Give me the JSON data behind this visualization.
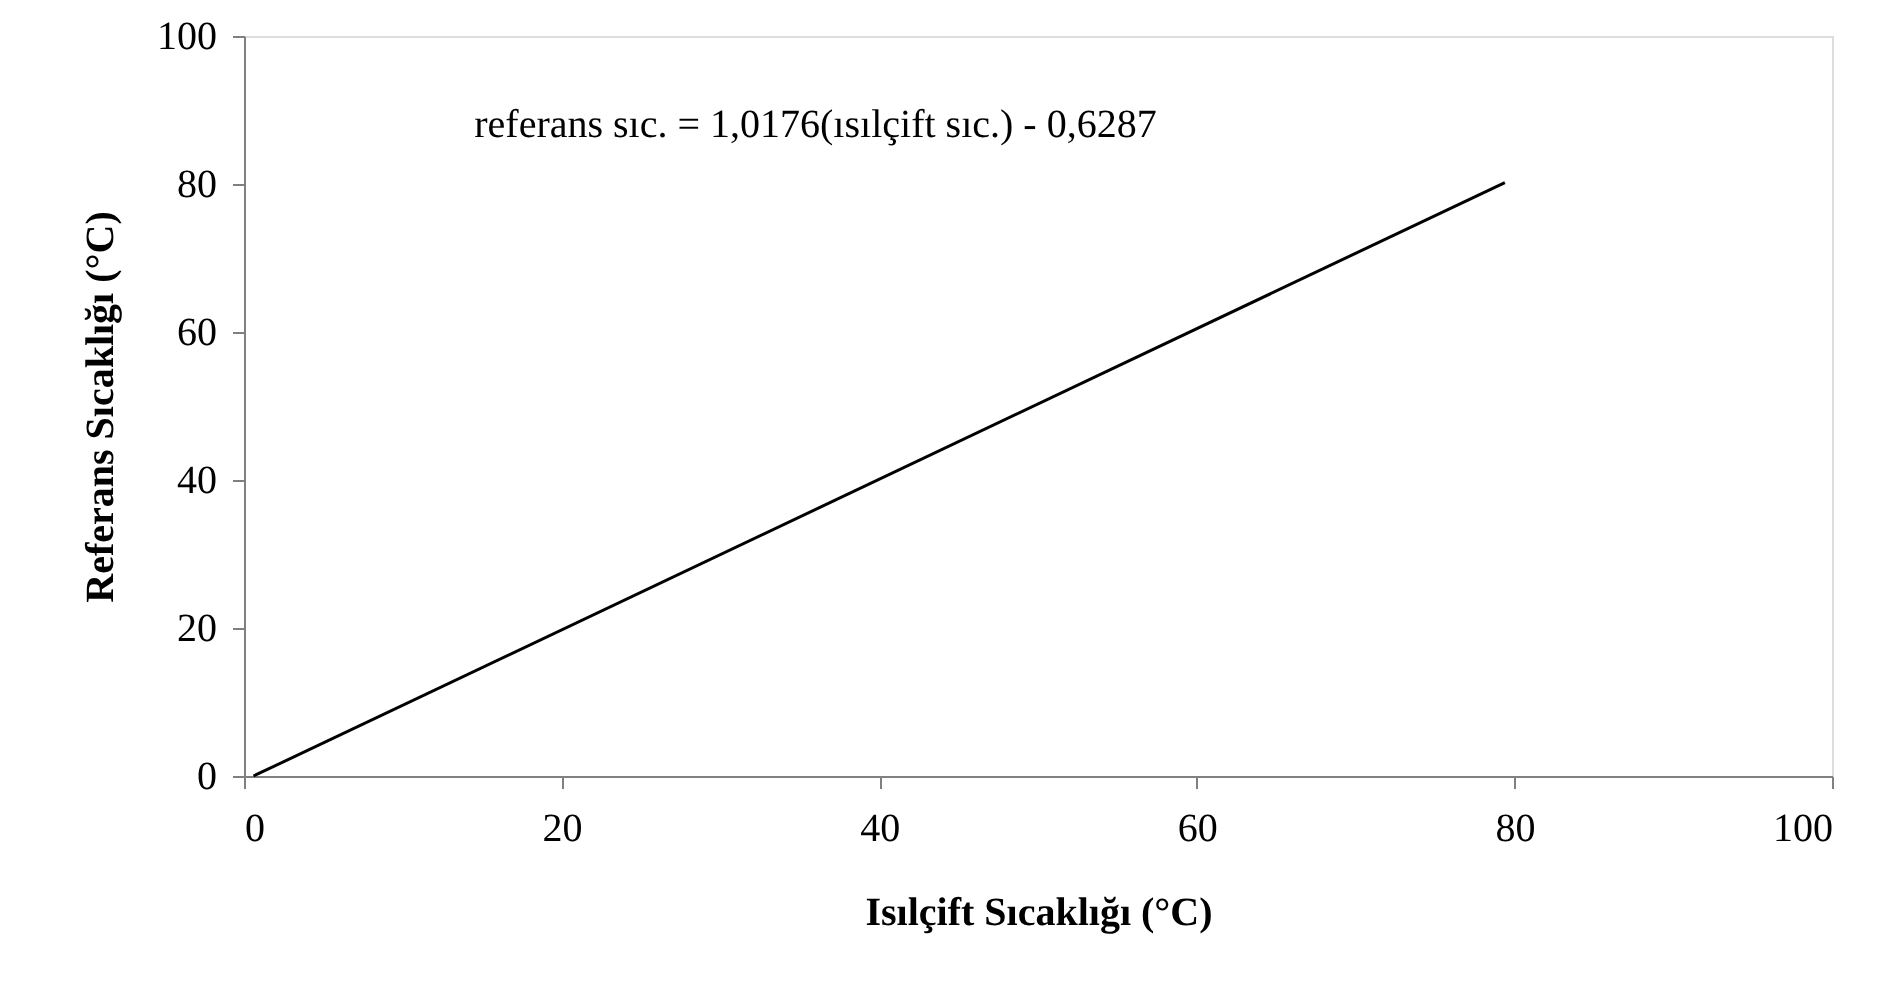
{
  "chart_data": {
    "type": "line",
    "xlabel": "Isılçift Sıcaklığı (°C)",
    "ylabel": "Referans  Sıcaklığı (°C)",
    "annotations": [
      "referans sıc. = 1,0176(ısılçift sıc.) - 0,6287"
    ],
    "series": [
      {
        "color": "#000000",
        "x": [
          0.6,
          79.4
        ],
        "values": [
          0,
          80.2
        ]
      }
    ],
    "xlim": [
      0,
      100
    ],
    "xticks": [
      0,
      20,
      40,
      60,
      80,
      100
    ],
    "ylim": [
      0,
      100
    ],
    "yticks": [
      0,
      20,
      40,
      60,
      80,
      100
    ],
    "grid": false,
    "marker": "none",
    "line_style": "solid"
  }
}
